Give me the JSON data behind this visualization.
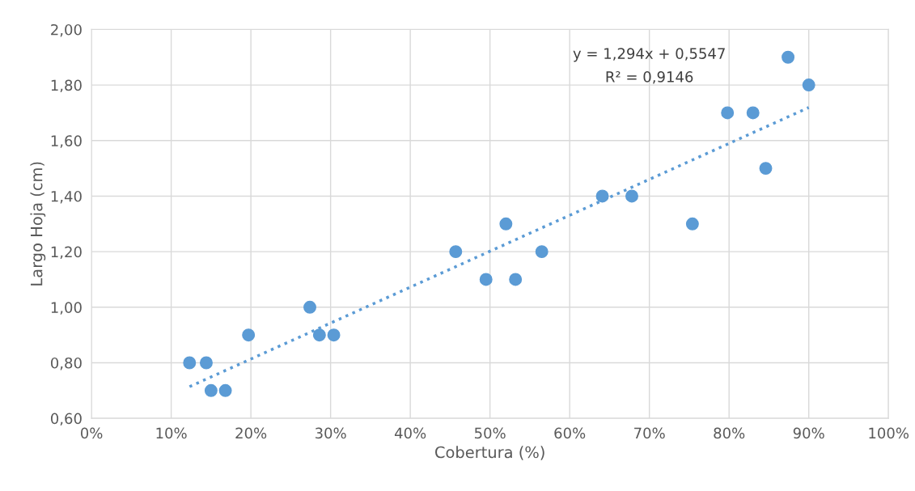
{
  "chart_data": {
    "type": "scatter",
    "xlabel": "Cobertura (%)",
    "ylabel": "Largo Hoja (cm)",
    "xlim": [
      0,
      1
    ],
    "ylim": [
      0.6,
      2.0
    ],
    "xticks": [
      {
        "value": 0,
        "label": "0%"
      },
      {
        "value": 0.1,
        "label": "10%"
      },
      {
        "value": 0.2,
        "label": "20%"
      },
      {
        "value": 0.3,
        "label": "30%"
      },
      {
        "value": 0.4,
        "label": "40%"
      },
      {
        "value": 0.5,
        "label": "50%"
      },
      {
        "value": 0.6,
        "label": "60%"
      },
      {
        "value": 0.7,
        "label": "70%"
      },
      {
        "value": 0.8,
        "label": "80%"
      },
      {
        "value": 0.9,
        "label": "90%"
      },
      {
        "value": 1.0,
        "label": "100%"
      }
    ],
    "yticks": [
      {
        "value": 0.6,
        "label": "0,60"
      },
      {
        "value": 0.8,
        "label": "0,80"
      },
      {
        "value": 1.0,
        "label": "1,00"
      },
      {
        "value": 1.2,
        "label": "1,20"
      },
      {
        "value": 1.4,
        "label": "1,40"
      },
      {
        "value": 1.6,
        "label": "1,60"
      },
      {
        "value": 1.8,
        "label": "1,80"
      },
      {
        "value": 2.0,
        "label": "2,00"
      }
    ],
    "grid": true,
    "legend": false,
    "marker": "circle",
    "annotations": [
      "y = 1,294x + 0,5547",
      "R² = 0,9146"
    ],
    "series": [
      {
        "color": "#5b9bd5",
        "x": [
          0.123,
          0.144,
          0.15,
          0.168,
          0.197,
          0.274,
          0.286,
          0.304,
          0.457,
          0.495,
          0.52,
          0.532,
          0.565,
          0.641,
          0.678,
          0.754,
          0.798,
          0.83,
          0.846,
          0.874,
          0.9
        ],
        "values": [
          0.8,
          0.8,
          0.7,
          0.7,
          0.9,
          1.0,
          0.9,
          0.9,
          1.2,
          1.1,
          1.3,
          1.1,
          1.2,
          1.4,
          1.4,
          1.3,
          1.7,
          1.7,
          1.5,
          1.9,
          1.8
        ]
      },
      {
        "type": "line",
        "color": "#5b9bd5",
        "line_style": "dotted",
        "marker": "none",
        "x": [
          0.123,
          0.9
        ],
        "values": [
          0.714,
          1.719
        ]
      }
    ]
  }
}
